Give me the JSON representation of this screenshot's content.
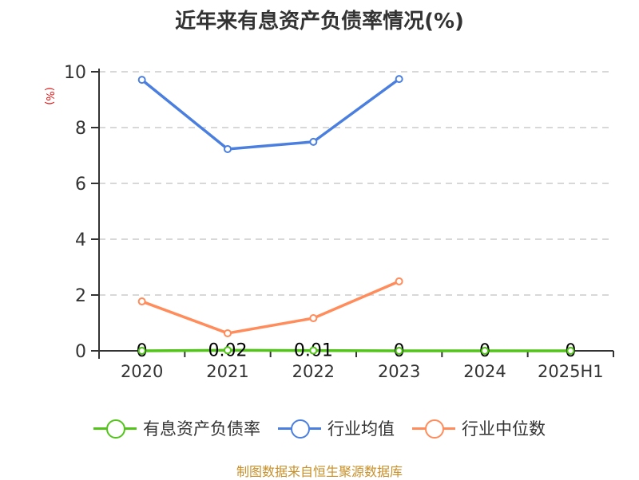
{
  "title": "近年来有息资产负债率情况(%)",
  "y_unit_label": "(%)",
  "source": "制图数据来自恒生聚源数据库",
  "legend": [
    {
      "label": "有息资产负债率",
      "color": "#52c41a"
    },
    {
      "label": "行业均值",
      "color": "#4a7fe0"
    },
    {
      "label": "行业中位数",
      "color": "#ff8c5a"
    }
  ],
  "chart_data": {
    "type": "line",
    "title": "近年来有息资产负债率情况(%)",
    "xlabel": "",
    "ylabel": "(%)",
    "categories": [
      "2020",
      "2021",
      "2022",
      "2023",
      "2024",
      "2025H1"
    ],
    "ylim": [
      0,
      10
    ],
    "yticks": [
      0,
      2,
      4,
      6,
      8,
      10
    ],
    "grid": true,
    "legend_position": "bottom",
    "series": [
      {
        "name": "有息资产负债率",
        "color": "#52c41a",
        "values": [
          0,
          0.02,
          0.01,
          0,
          0,
          0
        ],
        "data_labels": [
          "0",
          "0.02",
          "0.01",
          "0",
          "0",
          "0"
        ]
      },
      {
        "name": "行业均值",
        "color": "#4a7fe0",
        "values": [
          9.71,
          7.23,
          7.49,
          9.74,
          null,
          null
        ]
      },
      {
        "name": "行业中位数",
        "color": "#ff8c5a",
        "values": [
          1.77,
          0.63,
          1.17,
          2.49,
          null,
          null
        ]
      }
    ]
  }
}
